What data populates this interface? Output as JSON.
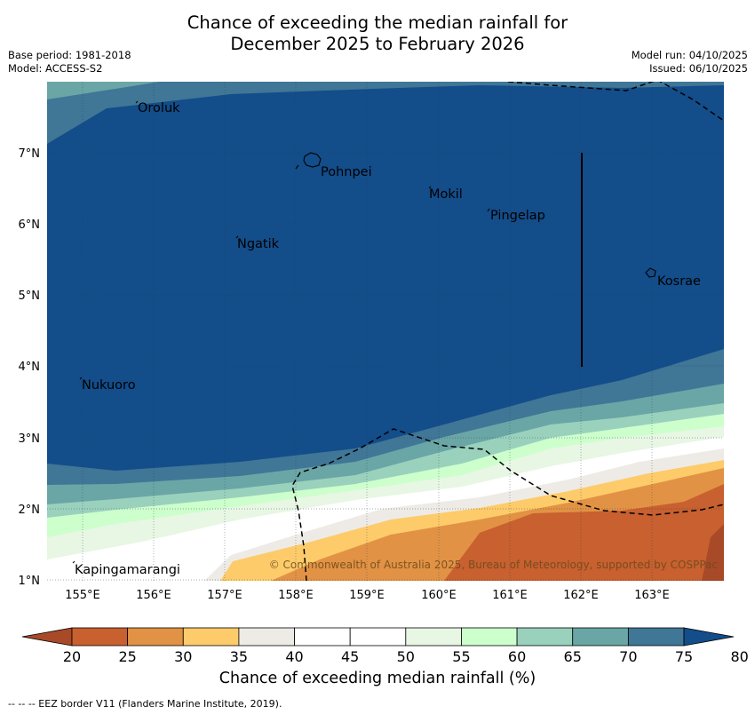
{
  "title_line1": "Chance of exceeding the median rainfall for",
  "title_line2": "December 2025 to February 2026",
  "base_period": "Base period: 1981-2018",
  "model": "Model: ACCESS-S2",
  "model_run": "Model run: 04/10/2025",
  "issued": "Issued: 06/10/2025",
  "copyright": "© Commonwealth of Australia 2025, Bureau of Meteorology, supported by COSPPac",
  "lat_labels": [
    "7°N",
    "6°N",
    "5°N",
    "4°N",
    "3°N",
    "2°N",
    "1°N"
  ],
  "lon_labels": [
    "155°E",
    "156°E",
    "157°E",
    "158°E",
    "159°E",
    "160°E",
    "161°E",
    "162°E",
    "163°E"
  ],
  "places": {
    "oroluk": "Oroluk",
    "pohnpei": "Pohnpei",
    "mokil": "Mokil",
    "pingelap": "Pingelap",
    "ngatik": "Ngatik",
    "kosrae": "Kosrae",
    "nukuoro": "Nukuoro",
    "kapingamarangi": "Kapingamarangi"
  },
  "colorbar": {
    "ticks": [
      "20",
      "25",
      "30",
      "35",
      "40",
      "45",
      "50",
      "55",
      "60",
      "65",
      "70",
      "75",
      "80"
    ],
    "colors": [
      "#a84a28",
      "#c8602f",
      "#e29244",
      "#fdcb6a",
      "#eeebe6",
      "#ffffff",
      "#ffffff",
      "#e8f6e4",
      "#ccffcc",
      "#9ad1bd",
      "#6aa6a6",
      "#407696",
      "#134d8a"
    ],
    "title": "Chance of exceeding median rainfall (%)"
  },
  "footer": "--  --  -- EEZ border V11 (Flanders Marine Institute, 2019)."
}
